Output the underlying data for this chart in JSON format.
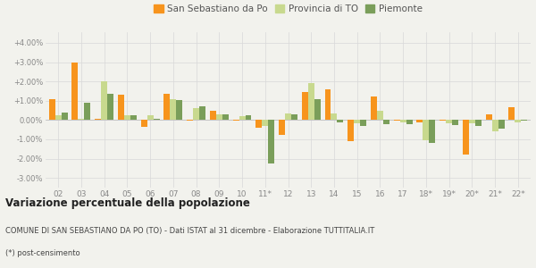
{
  "years": [
    "02",
    "03",
    "04",
    "05",
    "06",
    "07",
    "08",
    "09",
    "10",
    "11*",
    "12",
    "13",
    "14",
    "15",
    "16",
    "17",
    "18*",
    "19*",
    "20*",
    "21*",
    "22*"
  ],
  "san_sebastiano": [
    1.1,
    3.0,
    0.05,
    1.3,
    -0.35,
    1.35,
    -0.05,
    0.5,
    -0.05,
    -0.4,
    -0.75,
    1.45,
    1.6,
    -1.1,
    1.2,
    -0.05,
    -0.1,
    -0.05,
    -1.8,
    0.3,
    0.65
  ],
  "provincia_to": [
    0.25,
    0.05,
    2.0,
    0.25,
    0.25,
    1.1,
    0.6,
    0.3,
    0.2,
    -0.3,
    0.35,
    1.9,
    0.35,
    -0.15,
    0.5,
    -0.1,
    -1.05,
    -0.15,
    -0.15,
    -0.6,
    -0.1
  ],
  "piemonte": [
    0.4,
    0.9,
    1.35,
    0.25,
    0.05,
    1.05,
    0.7,
    0.3,
    0.25,
    -2.25,
    0.3,
    1.1,
    -0.1,
    -0.3,
    -0.2,
    -0.2,
    -1.2,
    -0.25,
    -0.3,
    -0.45,
    -0.05
  ],
  "color_san": "#f7941d",
  "color_provincia": "#c8d98e",
  "color_piemonte": "#7a9e5a",
  "bg_color": "#f2f2ed",
  "ylim": [
    -3.5,
    4.55
  ],
  "yticks": [
    -3.0,
    -2.0,
    -1.0,
    0.0,
    1.0,
    2.0,
    3.0,
    4.0
  ],
  "ytick_labels": [
    "-3.00%",
    "-2.00%",
    "-1.00%",
    "0.00%",
    "+1.00%",
    "+2.00%",
    "+3.00%",
    "+4.00%"
  ],
  "title": "Variazione percentuale della popolazione",
  "subtitle": "COMUNE DI SAN SEBASTIANO DA PO (TO) - Dati ISTAT al 31 dicembre - Elaborazione TUTTITALIA.IT",
  "footnote": "(*) post-censimento",
  "legend_labels": [
    "San Sebastiano da Po",
    "Provincia di TO",
    "Piemonte"
  ]
}
